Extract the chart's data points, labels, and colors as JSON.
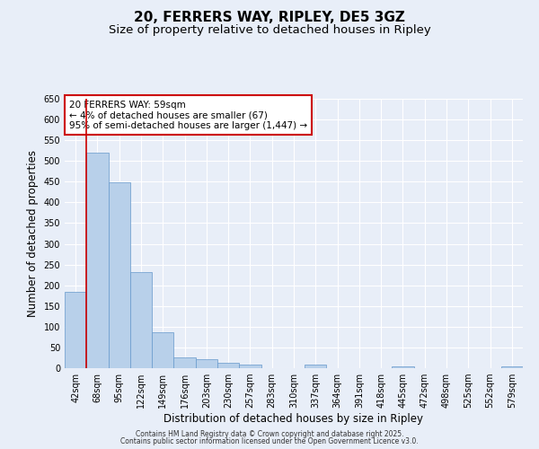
{
  "title": "20, FERRERS WAY, RIPLEY, DE5 3GZ",
  "subtitle": "Size of property relative to detached houses in Ripley",
  "xlabel": "Distribution of detached houses by size in Ripley",
  "ylabel": "Number of detached properties",
  "bar_labels": [
    "42sqm",
    "68sqm",
    "95sqm",
    "122sqm",
    "149sqm",
    "176sqm",
    "203sqm",
    "230sqm",
    "257sqm",
    "283sqm",
    "310sqm",
    "337sqm",
    "364sqm",
    "391sqm",
    "418sqm",
    "445sqm",
    "472sqm",
    "498sqm",
    "525sqm",
    "552sqm",
    "579sqm"
  ],
  "bar_values": [
    185,
    519,
    449,
    231,
    86,
    27,
    21,
    13,
    8,
    0,
    0,
    9,
    0,
    0,
    0,
    5,
    0,
    0,
    0,
    0,
    5
  ],
  "bar_color": "#b8d0ea",
  "bar_edge_color": "#6699cc",
  "bar_edge_width": 0.5,
  "vline_x": 0.48,
  "vline_color": "#cc0000",
  "annotation_text": "20 FERRERS WAY: 59sqm\n← 4% of detached houses are smaller (67)\n95% of semi-detached houses are larger (1,447) →",
  "annotation_box_color": "#ffffff",
  "annotation_box_edge": "#cc0000",
  "ylim": [
    0,
    650
  ],
  "yticks": [
    0,
    50,
    100,
    150,
    200,
    250,
    300,
    350,
    400,
    450,
    500,
    550,
    600,
    650
  ],
  "bg_color": "#e8eef8",
  "grid_color": "#ffffff",
  "footer_line1": "Contains HM Land Registry data © Crown copyright and database right 2025.",
  "footer_line2": "Contains public sector information licensed under the Open Government Licence v3.0.",
  "title_fontsize": 11,
  "subtitle_fontsize": 9.5,
  "axis_label_fontsize": 8.5,
  "tick_fontsize": 7,
  "annotation_fontsize": 7.5
}
